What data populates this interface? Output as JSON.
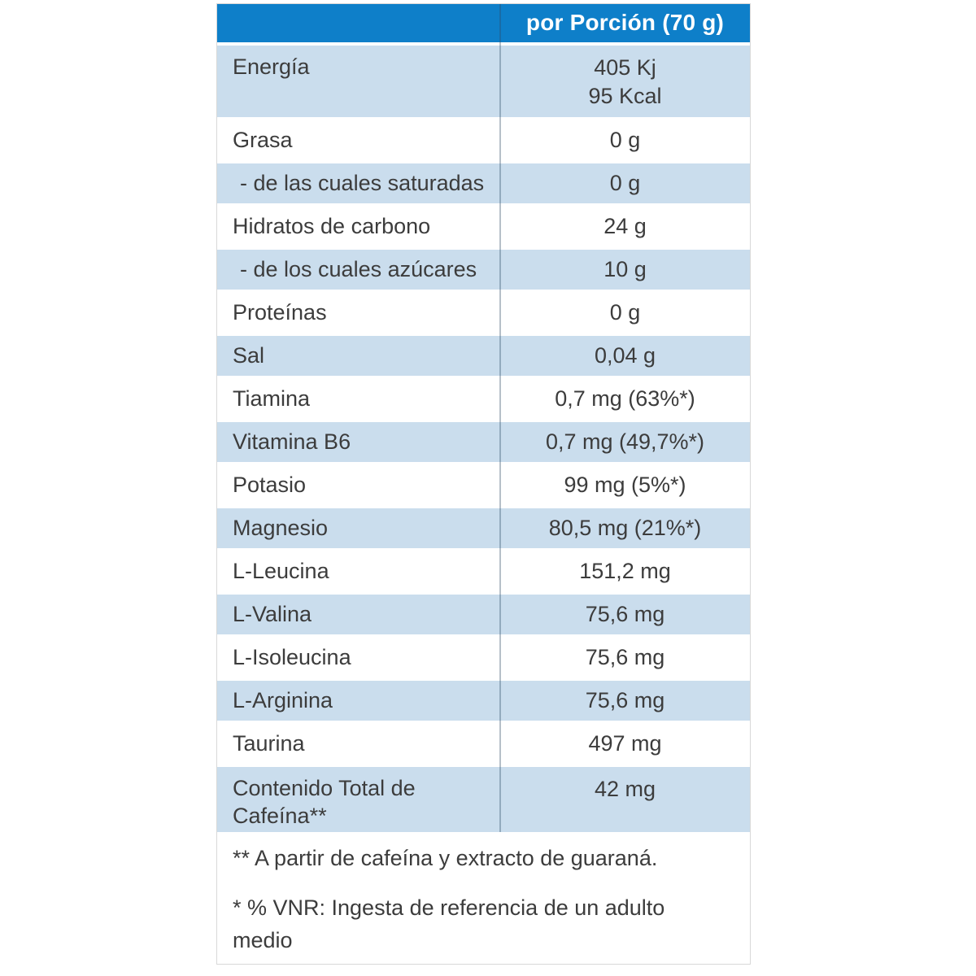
{
  "table": {
    "header": {
      "label": "",
      "value": "por Porción (70 g)"
    },
    "rows": [
      {
        "label": "Energía",
        "value": "405 Kj\n95 Kcal"
      },
      {
        "label": "Grasa",
        "value": "0 g"
      },
      {
        "label": "- de las cuales saturadas",
        "value": "0 g"
      },
      {
        "label": "Hidratos de carbono",
        "value": "24 g"
      },
      {
        "label": "- de los cuales azúcares",
        "value": "10 g"
      },
      {
        "label": "Proteínas",
        "value": "0 g"
      },
      {
        "label": "Sal",
        "value": "0,04 g"
      },
      {
        "label": "Tiamina",
        "value": "0,7 mg (63%*)"
      },
      {
        "label": "Vitamina B6",
        "value": "0,7 mg (49,7%*)"
      },
      {
        "label": "Potasio",
        "value": "99 mg (5%*)"
      },
      {
        "label": "Magnesio",
        "value": "80,5 mg (21%*)"
      },
      {
        "label": "L-Leucina",
        "value": "151,2 mg"
      },
      {
        "label": "L-Valina",
        "value": "75,6 mg"
      },
      {
        "label": "L-Isoleucina",
        "value": "75,6 mg"
      },
      {
        "label": "L-Arginina",
        "value": "75,6 mg"
      },
      {
        "label": "Taurina",
        "value": "497 mg"
      },
      {
        "label": "Contenido Total de Cafeína**",
        "value": "42 mg"
      }
    ],
    "notes": [
      "** A partir de cafeína y extracto de guaraná.",
      "* % VNR: Ingesta de referencia de un adulto medio"
    ],
    "colors": {
      "header_background": "#0e7fc9",
      "header_text": "#ffffff",
      "alt_row_background": "#cadded",
      "row_background": "#ffffff",
      "text": "#3c3c3c"
    }
  }
}
